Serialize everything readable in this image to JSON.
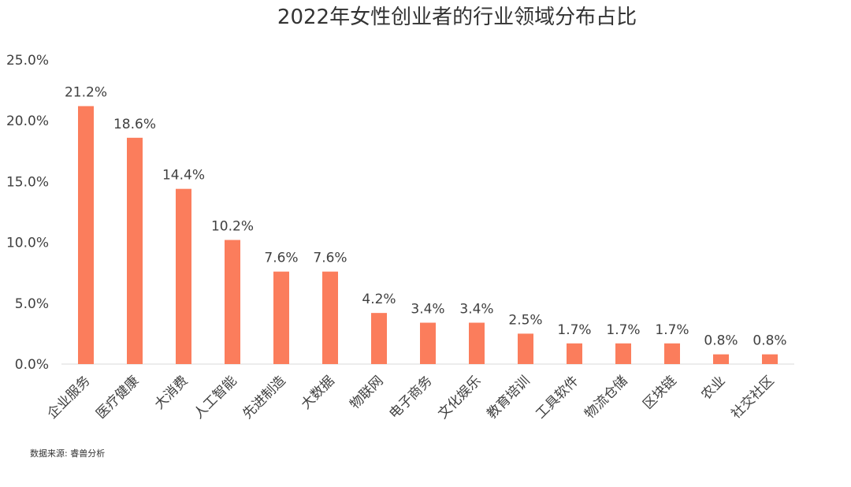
{
  "chart_data": {
    "type": "bar",
    "title": "2022年女性创业者的行业领域分布占比",
    "categories": [
      "企业服务",
      "医疗健康",
      "大消费",
      "人工智能",
      "先进制造",
      "大数据",
      "物联网",
      "电子商务",
      "文化娱乐",
      "教育培训",
      "工具软件",
      "物流仓储",
      "区块链",
      "农业",
      "社交社区"
    ],
    "values": [
      21.2,
      18.6,
      14.4,
      10.2,
      7.6,
      7.6,
      4.2,
      3.4,
      3.4,
      2.5,
      1.7,
      1.7,
      1.7,
      0.8,
      0.8
    ],
    "data_labels": [
      "21.2%",
      "18.6%",
      "14.4%",
      "10.2%",
      "7.6%",
      "7.6%",
      "4.2%",
      "3.4%",
      "3.4%",
      "2.5%",
      "1.7%",
      "1.7%",
      "1.7%",
      "0.8%",
      "0.8%"
    ],
    "ylim": [
      0,
      25
    ],
    "yticks": [
      "0.0%",
      "5.0%",
      "10.0%",
      "15.0%",
      "20.0%",
      "25.0%"
    ],
    "xlabel": "",
    "ylabel": "",
    "grid": false,
    "bar_color": "#fb7d5c",
    "axis_color": "#d9d9d9"
  },
  "source_note": "数据来源: 睿兽分析"
}
